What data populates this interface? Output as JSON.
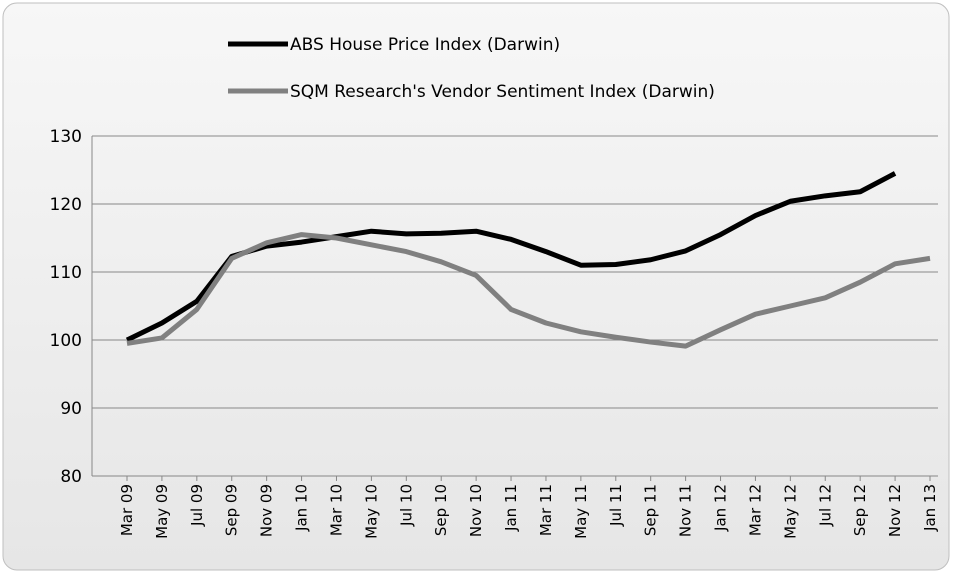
{
  "chart_data": {
    "type": "line",
    "categories": [
      "Mar 09",
      "May 09",
      "Jul 09",
      "Sep 09",
      "Nov 09",
      "Jan 10",
      "Mar 10",
      "May 10",
      "Jul 10",
      "Sep 10",
      "Nov 10",
      "Jan 11",
      "Mar 11",
      "May 11",
      "Jul 11",
      "Sep 11",
      "Nov 11",
      "Jan 12",
      "Mar 12",
      "May 12",
      "Jul 12",
      "Sep 12",
      "Nov 12",
      "Jan 13"
    ],
    "series": [
      {
        "name": "ABS House Price Index (Darwin)",
        "color": "#000000",
        "values": [
          100,
          102.5,
          105.7,
          112.3,
          113.8,
          114.4,
          115.2,
          116,
          115.6,
          115.7,
          116,
          114.8,
          113,
          111,
          111.1,
          111.8,
          113.1,
          115.5,
          118.3,
          120.4,
          121.2,
          121.8,
          124.5,
          null
        ]
      },
      {
        "name": "SQM Research's Vendor Sentiment Index (Darwin)",
        "color": "#808080",
        "values": [
          99.5,
          100.3,
          104.5,
          112,
          114.3,
          115.5,
          115,
          114,
          113,
          111.5,
          109.5,
          104.5,
          102.5,
          101.2,
          100.4,
          99.7,
          99.1,
          101.5,
          103.8,
          105,
          106.2,
          108.5,
          111.2,
          112
        ]
      }
    ],
    "ylim": [
      80,
      130
    ],
    "yticks": [
      80,
      90,
      100,
      110,
      120,
      130
    ],
    "grid": true
  }
}
